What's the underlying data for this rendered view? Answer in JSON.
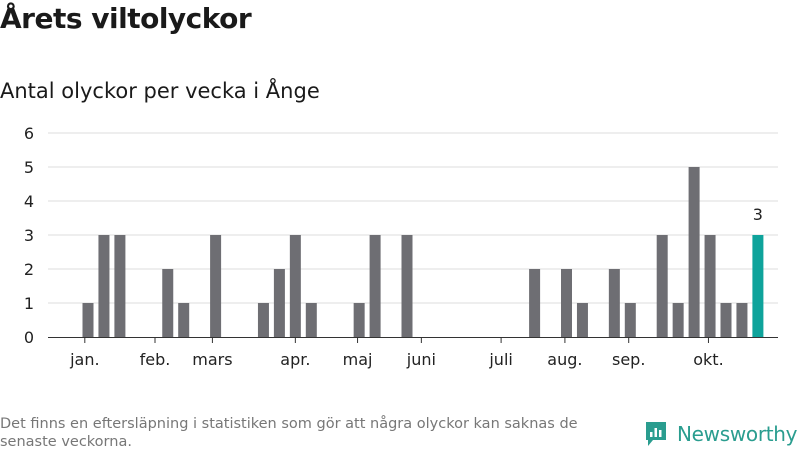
{
  "title": "Årets viltolyckor",
  "subtitle": "Antal olyckor per vecka i Ånge",
  "footnote": "Det finns en eftersläpning i statistiken som gör att några olyckor kan saknas de senaste veckorna.",
  "brand": {
    "name": "Newsworthy",
    "icon": "newsworthy-logo-icon",
    "color": "#2a9d8f"
  },
  "colors": {
    "bar": "#6e6e73",
    "highlight": "#0ea39b",
    "grid": "#dcdcdc",
    "axis": "#333333"
  },
  "chart_data": {
    "type": "bar",
    "xlabel": "",
    "ylabel": "",
    "ylim": [
      0,
      6
    ],
    "yticks": [
      0,
      1,
      2,
      3,
      4,
      5,
      6
    ],
    "grid": true,
    "x_unit": "week",
    "x": [
      1,
      2,
      3,
      4,
      5,
      6,
      7,
      8,
      9,
      10,
      11,
      12,
      13,
      14,
      15,
      16,
      17,
      18,
      19,
      20,
      21,
      22,
      23,
      24,
      25,
      26,
      27,
      28,
      29,
      30,
      31,
      32,
      33,
      34,
      35,
      36,
      37,
      38,
      39,
      40,
      41,
      42,
      43
    ],
    "values": [
      0,
      1,
      3,
      3,
      0,
      0,
      2,
      1,
      0,
      3,
      0,
      0,
      1,
      2,
      3,
      1,
      0,
      0,
      1,
      3,
      0,
      3,
      0,
      0,
      0,
      0,
      0,
      0,
      0,
      2,
      0,
      2,
      1,
      0,
      2,
      1,
      0,
      3,
      1,
      5,
      3,
      1,
      1
    ],
    "highlight": {
      "x": 44,
      "value": 3,
      "label": "3"
    },
    "xtick_labels": [
      {
        "label": "jan.",
        "week": 1.8
      },
      {
        "label": "feb.",
        "week": 6.2
      },
      {
        "label": "mars",
        "week": 9.8
      },
      {
        "label": "apr.",
        "week": 15.0
      },
      {
        "label": "maj",
        "week": 18.9
      },
      {
        "label": "juni",
        "week": 22.9
      },
      {
        "label": "juli",
        "week": 27.9
      },
      {
        "label": "aug.",
        "week": 31.9
      },
      {
        "label": "sep.",
        "week": 35.9
      },
      {
        "label": "okt.",
        "week": 40.9
      }
    ]
  }
}
